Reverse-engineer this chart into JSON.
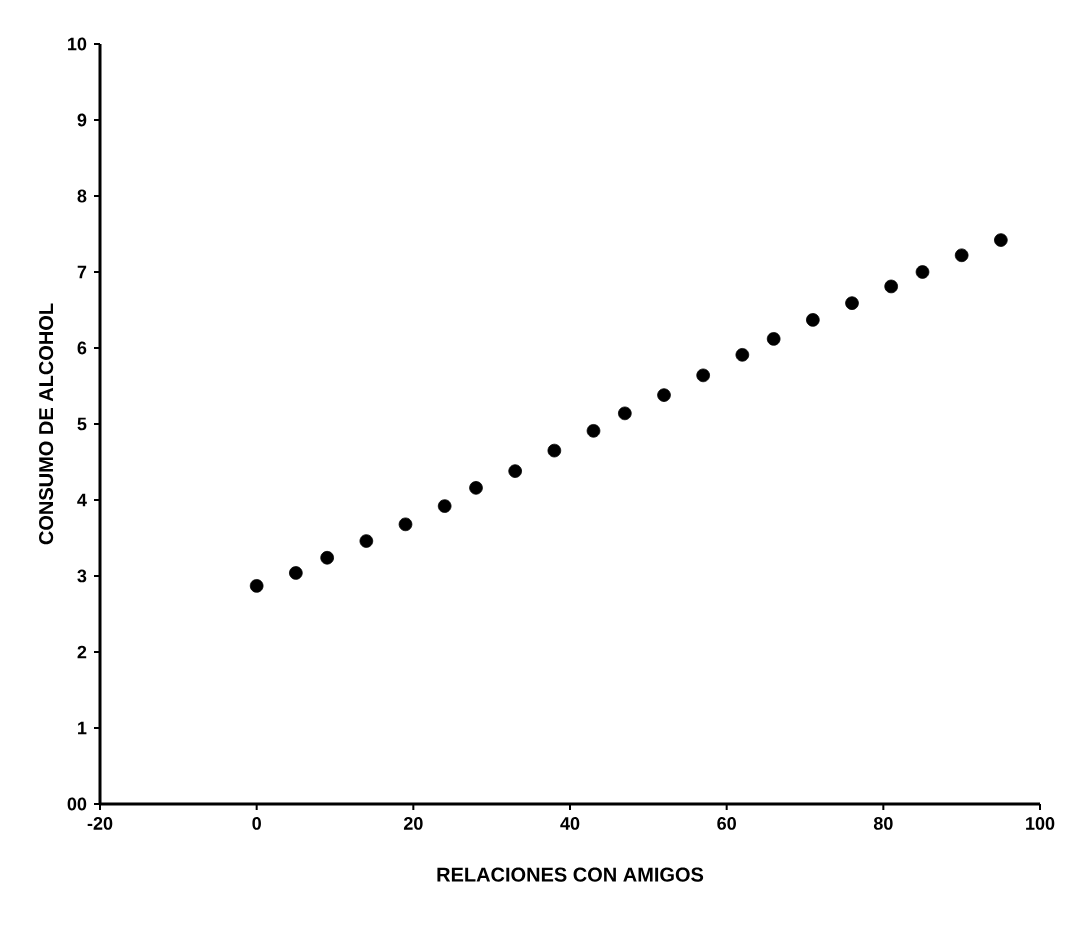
{
  "chart_data": {
    "type": "scatter",
    "xlabel": "RELACIONES CON AMIGOS",
    "ylabel": "CONSUMO DE ALCOHOL",
    "x": [
      0,
      5,
      9,
      14,
      19,
      24,
      28,
      33,
      38,
      43,
      47,
      52,
      57,
      62,
      66,
      71,
      76,
      81,
      85,
      90,
      95
    ],
    "values": [
      2.87,
      3.04,
      3.24,
      3.46,
      3.68,
      3.92,
      4.16,
      4.38,
      4.65,
      4.91,
      5.14,
      5.38,
      5.64,
      5.91,
      6.12,
      6.37,
      6.59,
      6.81,
      7.0,
      7.22,
      7.42
    ],
    "color": "#000000",
    "marker": "circle",
    "xlim": [
      -20,
      100
    ],
    "xticks": [
      -20,
      0,
      20,
      40,
      60,
      80,
      100
    ],
    "ylim": [
      0,
      10
    ],
    "yticks": [
      {
        "value": 0,
        "label": "00"
      },
      1,
      2,
      3,
      4,
      5,
      6,
      7,
      8,
      9,
      10
    ]
  }
}
